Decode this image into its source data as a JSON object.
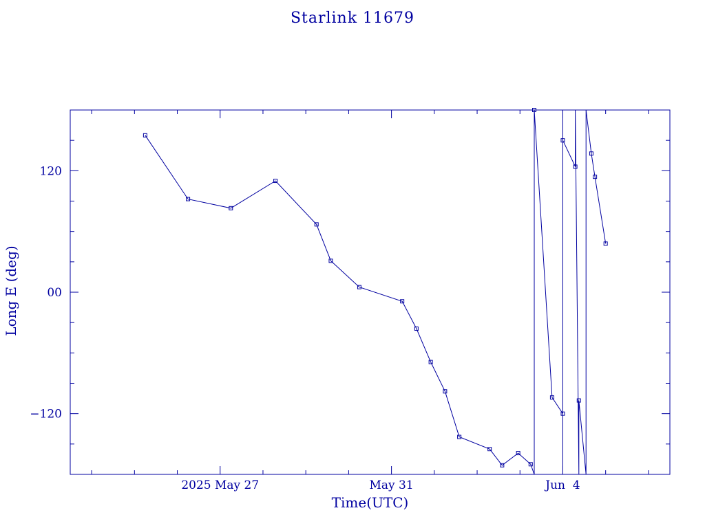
{
  "chart_data": {
    "type": "line",
    "title": "Starlink 11679",
    "xlabel": "Time(UTC)",
    "ylabel": "Long E (deg)",
    "xlim": [
      "2025-05-23T12:00",
      "2025-06-06T12:00"
    ],
    "ylim": [
      -180,
      180
    ],
    "x_tick_labels": [
      {
        "at": "2025-05-27",
        "label": "2025 May 27"
      },
      {
        "at": "2025-05-31",
        "label": "May 31"
      },
      {
        "at": "2025-06-04",
        "label": "Jun  4"
      }
    ],
    "y_tick_labels": [
      {
        "at": 120,
        "label": "120"
      },
      {
        "at": 0,
        "label": "00"
      },
      {
        "at": -120,
        "label": "−120"
      }
    ],
    "grid": false,
    "legend": "none",
    "colors": {
      "line": "#0000a0",
      "axes": "#0000a0",
      "text": "#0000a0"
    },
    "series": [
      {
        "points": [
          {
            "x": "2025-05-25T06:00",
            "y": 155
          },
          {
            "x": "2025-05-26T06:00",
            "y": 92
          },
          {
            "x": "2025-05-27T06:00",
            "y": 83
          },
          {
            "x": "2025-05-28T07:00",
            "y": 110
          },
          {
            "x": "2025-05-29T06:00",
            "y": 67
          },
          {
            "x": "2025-05-29T14:00",
            "y": 31
          },
          {
            "x": "2025-05-30T06:00",
            "y": 5
          },
          {
            "x": "2025-05-31T06:00",
            "y": -9
          },
          {
            "x": "2025-05-31T14:00",
            "y": -36
          },
          {
            "x": "2025-05-31T22:00",
            "y": -69
          },
          {
            "x": "2025-06-01T06:00",
            "y": -98
          },
          {
            "x": "2025-06-01T14:00",
            "y": -143
          },
          {
            "x": "2025-06-02T07:00",
            "y": -155
          },
          {
            "x": "2025-06-02T14:00",
            "y": -171
          },
          {
            "x": "2025-06-02T23:00",
            "y": -159
          },
          {
            "x": "2025-06-03T06:00",
            "y": -170
          },
          {
            "x": "2025-06-03T08:00",
            "y": -180,
            "marker": false
          },
          {
            "x": "2025-06-03T08:00",
            "y": 180
          },
          {
            "x": "2025-06-03T18:00",
            "y": -104
          },
          {
            "x": "2025-06-04T00:00",
            "y": -120
          },
          {
            "x": "2025-06-04T00:00",
            "y": -180,
            "marker": false
          },
          {
            "x": "2025-06-04T00:00",
            "y": 180,
            "marker": false
          },
          {
            "x": "2025-06-04T00:00",
            "y": 150
          },
          {
            "x": "2025-06-04T07:00",
            "y": 124
          },
          {
            "x": "2025-06-04T07:00",
            "y": 180,
            "marker": false
          },
          {
            "x": "2025-06-04T09:00",
            "y": -180,
            "marker": false
          },
          {
            "x": "2025-06-04T09:00",
            "y": -107
          },
          {
            "x": "2025-06-04T13:00",
            "y": -180,
            "marker": false
          },
          {
            "x": "2025-06-04T13:00",
            "y": 180,
            "marker": false
          },
          {
            "x": "2025-06-04T16:00",
            "y": 137
          },
          {
            "x": "2025-06-04T18:00",
            "y": 114
          },
          {
            "x": "2025-06-05T00:00",
            "y": 48
          }
        ]
      }
    ]
  }
}
